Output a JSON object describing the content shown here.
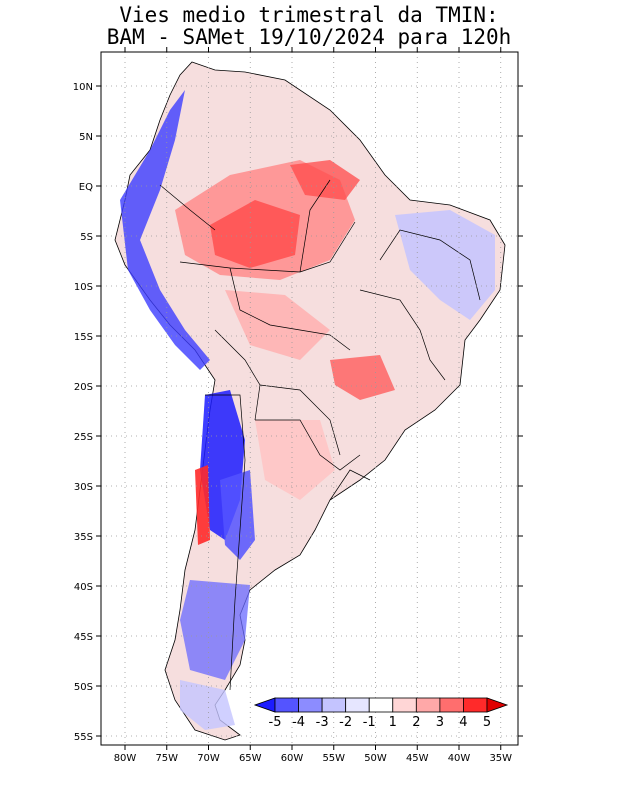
{
  "header": {
    "title_line1": "Vies medio trimestral da TMIN:",
    "title_line2": "BAM - SAMet 19/10/2024  para 120h"
  },
  "map": {
    "region": "South America",
    "lat_labels": [
      "10N",
      "5N",
      "EQ",
      "5S",
      "10S",
      "15S",
      "20S",
      "25S",
      "30S",
      "35S",
      "40S",
      "45S",
      "50S",
      "55S"
    ],
    "lat_values": [
      10,
      5,
      0,
      -5,
      -10,
      -15,
      -20,
      -25,
      -30,
      -35,
      -40,
      -45,
      -50,
      -55
    ],
    "lon_labels": [
      "80W",
      "75W",
      "70W",
      "65W",
      "60W",
      "55W",
      "50W",
      "45W",
      "40W",
      "35W"
    ],
    "lon_values": [
      -80,
      -75,
      -70,
      -65,
      -60,
      -55,
      -50,
      -45,
      -40,
      -35
    ],
    "grid": "dotted",
    "land_color": "#f3d2d2",
    "ocean_color": "#ffffff"
  },
  "colorbar": {
    "labels": [
      "-5",
      "-4",
      "-3",
      "-2",
      "-1",
      "1",
      "2",
      "3",
      "4",
      "5"
    ],
    "colors": [
      "#1c1cff",
      "#5454ff",
      "#8c8cff",
      "#c4c4ff",
      "#e6e6ff",
      "#ffffff",
      "#ffd6d6",
      "#ffa8a8",
      "#ff6e6e",
      "#ff2a2a",
      "#e00000"
    ]
  }
}
